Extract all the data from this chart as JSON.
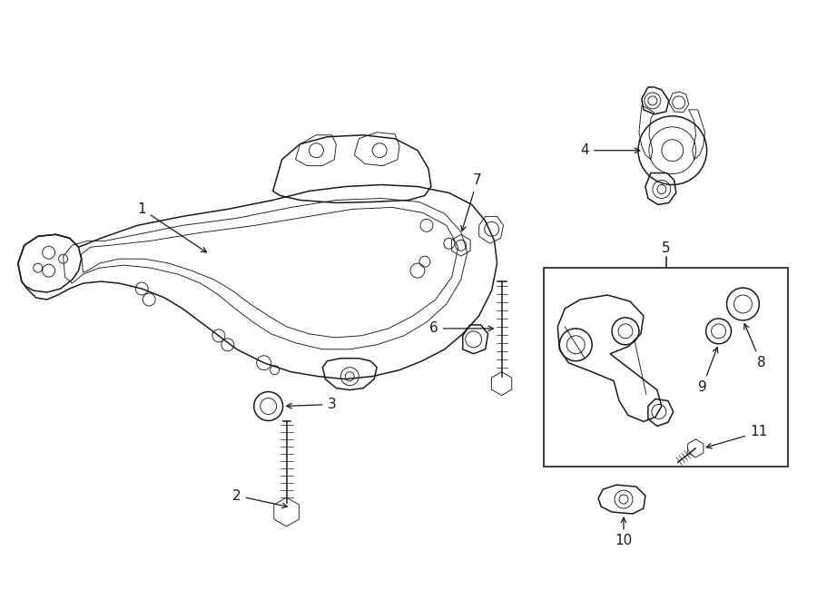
{
  "bg_color": "#ffffff",
  "line_color": "#1a1a1a",
  "figsize": [
    9.0,
    6.61
  ],
  "dpi": 100,
  "lw_main": 1.1,
  "lw_thin": 0.65,
  "label_fontsize": 11
}
